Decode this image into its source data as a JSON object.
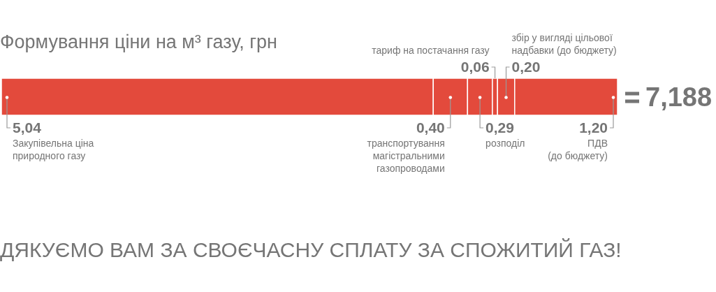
{
  "chart_data": {
    "type": "bar",
    "title": "Формування ціни на м³ газу, грн",
    "orientation": "horizontal",
    "stacked": true,
    "categories": [
      null
    ],
    "series": [
      {
        "name": "Закупівельна ціна\nприродного газу",
        "color": "#e34a3c",
        "values": [
          5.04
        ],
        "value_labels": [
          "5,04"
        ]
      },
      {
        "name": "транспортування\nмагістральними\nгазопроводами",
        "color": "#e34a3c",
        "values": [
          0.4
        ],
        "value_labels": [
          "0,40"
        ]
      },
      {
        "name": "розподіл",
        "color": "#e34a3c",
        "values": [
          0.29
        ],
        "value_labels": [
          "0,29"
        ]
      },
      {
        "name": "тариф на постачання газу",
        "color": "#e34a3c",
        "values": [
          0.06
        ],
        "value_labels": [
          "0,06"
        ]
      },
      {
        "name": "збір у вигляді цільової\nнадбавки (до бюджету)",
        "color": "#e34a3c",
        "values": [
          0.2
        ],
        "value_labels": [
          "0,20"
        ]
      },
      {
        "name": "ПДВ\n(до бюджету)",
        "color": "#e34a3c",
        "values": [
          1.2
        ],
        "value_labels": [
          "1,20"
        ]
      }
    ],
    "totals": [
      "7,188"
    ],
    "annotations": [
      "ДЯКУЄМО ВАМ ЗА СВОЄЧАСНУ СПЛАТУ ЗА СПОЖИТИЙ ГАЗ!"
    ]
  }
}
